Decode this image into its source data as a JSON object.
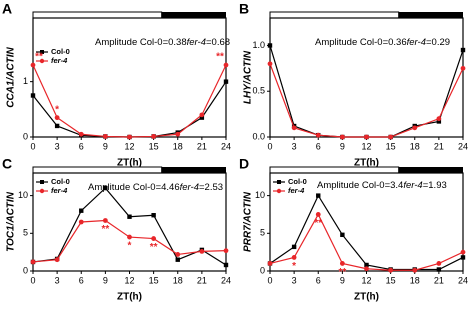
{
  "chart_data": [
    {
      "type": "line",
      "panel_label": "A",
      "y_label": "CCA1/ACTIN",
      "x_label": "ZT(h)",
      "x": [
        0,
        3,
        6,
        9,
        12,
        15,
        18,
        21,
        24
      ],
      "xlim": [
        0,
        24
      ],
      "xticks": [
        0,
        3,
        6,
        9,
        12,
        15,
        18,
        21,
        24
      ],
      "ylim": [
        0,
        2.15
      ],
      "yticks": [
        0,
        1
      ],
      "photoperiod": {
        "light": [
          0,
          16
        ],
        "dark": [
          16,
          24
        ]
      },
      "amplitude": [
        "Amplitude Col-0=0.38",
        "fer-4",
        "=0.68"
      ],
      "legend": true,
      "series": [
        {
          "name": "Col-0",
          "color": "#000000",
          "marker": "square",
          "values": [
            0.75,
            0.2,
            0.03,
            0.01,
            0,
            0.01,
            0.08,
            0.35,
            1.0
          ]
        },
        {
          "name": "fer-4",
          "color": "#e8262a",
          "marker": "circle",
          "values": [
            1.3,
            0.35,
            0.05,
            0.01,
            0,
            0.01,
            0.05,
            0.4,
            1.3
          ]
        }
      ],
      "annotations": [
        {
          "x": 0,
          "text": "**"
        },
        {
          "x": 3,
          "text": "*"
        },
        {
          "x": 24,
          "text": "**"
        }
      ]
    },
    {
      "type": "line",
      "panel_label": "B",
      "y_label": "LHY/ACTIN",
      "x_label": "ZT(h)",
      "x": [
        0,
        3,
        6,
        9,
        12,
        15,
        18,
        21,
        24
      ],
      "xlim": [
        0,
        24
      ],
      "xticks": [
        0,
        3,
        6,
        9,
        12,
        15,
        18,
        21,
        24
      ],
      "ylim": [
        0,
        1.3
      ],
      "yticks": [
        {
          "value": 0,
          "label": "0.0"
        },
        {
          "value": 0.5,
          "label": "0.5"
        },
        {
          "value": 1,
          "label": "1.0"
        }
      ],
      "photoperiod": {
        "light": [
          0,
          16
        ],
        "dark": [
          16,
          24
        ]
      },
      "amplitude": [
        "Amplitude Col-0=0.36",
        "fer-4",
        "=0.29"
      ],
      "legend": false,
      "series": [
        {
          "name": "Col-0",
          "color": "#000000",
          "marker": "square",
          "values": [
            1.0,
            0.12,
            0.02,
            0,
            0,
            0,
            0.12,
            0.17,
            0.95
          ]
        },
        {
          "name": "fer-4",
          "color": "#e8262a",
          "marker": "circle",
          "values": [
            0.8,
            0.1,
            0.02,
            0,
            0,
            0,
            0.1,
            0.2,
            0.75
          ]
        }
      ],
      "annotations": []
    },
    {
      "type": "line",
      "panel_label": "C",
      "y_label": "TOC1/ACTIN",
      "x_label": "ZT(h)",
      "x": [
        0,
        3,
        6,
        9,
        12,
        15,
        18,
        21,
        24
      ],
      "xlim": [
        0,
        24
      ],
      "xticks": [
        0,
        3,
        6,
        9,
        12,
        15,
        18,
        21,
        24
      ],
      "ylim": [
        0,
        13
      ],
      "yticks": [
        0,
        5,
        10
      ],
      "photoperiod": {
        "light": [
          0,
          16
        ],
        "dark": [
          16,
          24
        ]
      },
      "amplitude": [
        "Amplitude Col-0=4.46",
        "fer-4",
        "=2.53"
      ],
      "legend": true,
      "series": [
        {
          "name": "Col-0",
          "color": "#000000",
          "marker": "square",
          "values": [
            1.2,
            1.6,
            8,
            11,
            7.2,
            7.4,
            1.5,
            2.8,
            0.8
          ]
        },
        {
          "name": "fer-4",
          "color": "#e8262a",
          "marker": "circle",
          "values": [
            1.2,
            1.5,
            6.5,
            6.7,
            4.5,
            4.3,
            2.2,
            2.6,
            2.7
          ]
        }
      ],
      "annotations": [
        {
          "x": 9,
          "text": "**"
        },
        {
          "x": 12,
          "text": "*"
        },
        {
          "x": 15,
          "text": "**"
        }
      ]
    },
    {
      "type": "line",
      "panel_label": "D",
      "y_label": "PRR7/ACTIN",
      "x_label": "ZT(h)",
      "x": [
        0,
        3,
        6,
        9,
        12,
        15,
        18,
        21,
        24
      ],
      "xlim": [
        0,
        24
      ],
      "xticks": [
        0,
        3,
        6,
        9,
        12,
        15,
        18,
        21,
        24
      ],
      "ylim": [
        0,
        13
      ],
      "yticks": [
        0,
        5,
        10
      ],
      "photoperiod": {
        "light": [
          0,
          16
        ],
        "dark": [
          16,
          24
        ]
      },
      "amplitude": [
        "Amplitude Col-0=3.4",
        "fer-4",
        "=1.93"
      ],
      "legend": true,
      "series": [
        {
          "name": "Col-0",
          "color": "#000000",
          "marker": "square",
          "values": [
            1,
            3.2,
            10,
            4.8,
            0.8,
            0.2,
            0.2,
            0.2,
            1.8
          ]
        },
        {
          "name": "fer-4",
          "color": "#e8262a",
          "marker": "circle",
          "values": [
            1,
            1.8,
            7.5,
            1,
            0.3,
            0.1,
            0.1,
            1,
            2.5
          ]
        }
      ],
      "annotations": [
        {
          "x": 3,
          "text": "*"
        },
        {
          "x": 6,
          "text": "**"
        },
        {
          "x": 9,
          "text": "**"
        }
      ]
    }
  ]
}
